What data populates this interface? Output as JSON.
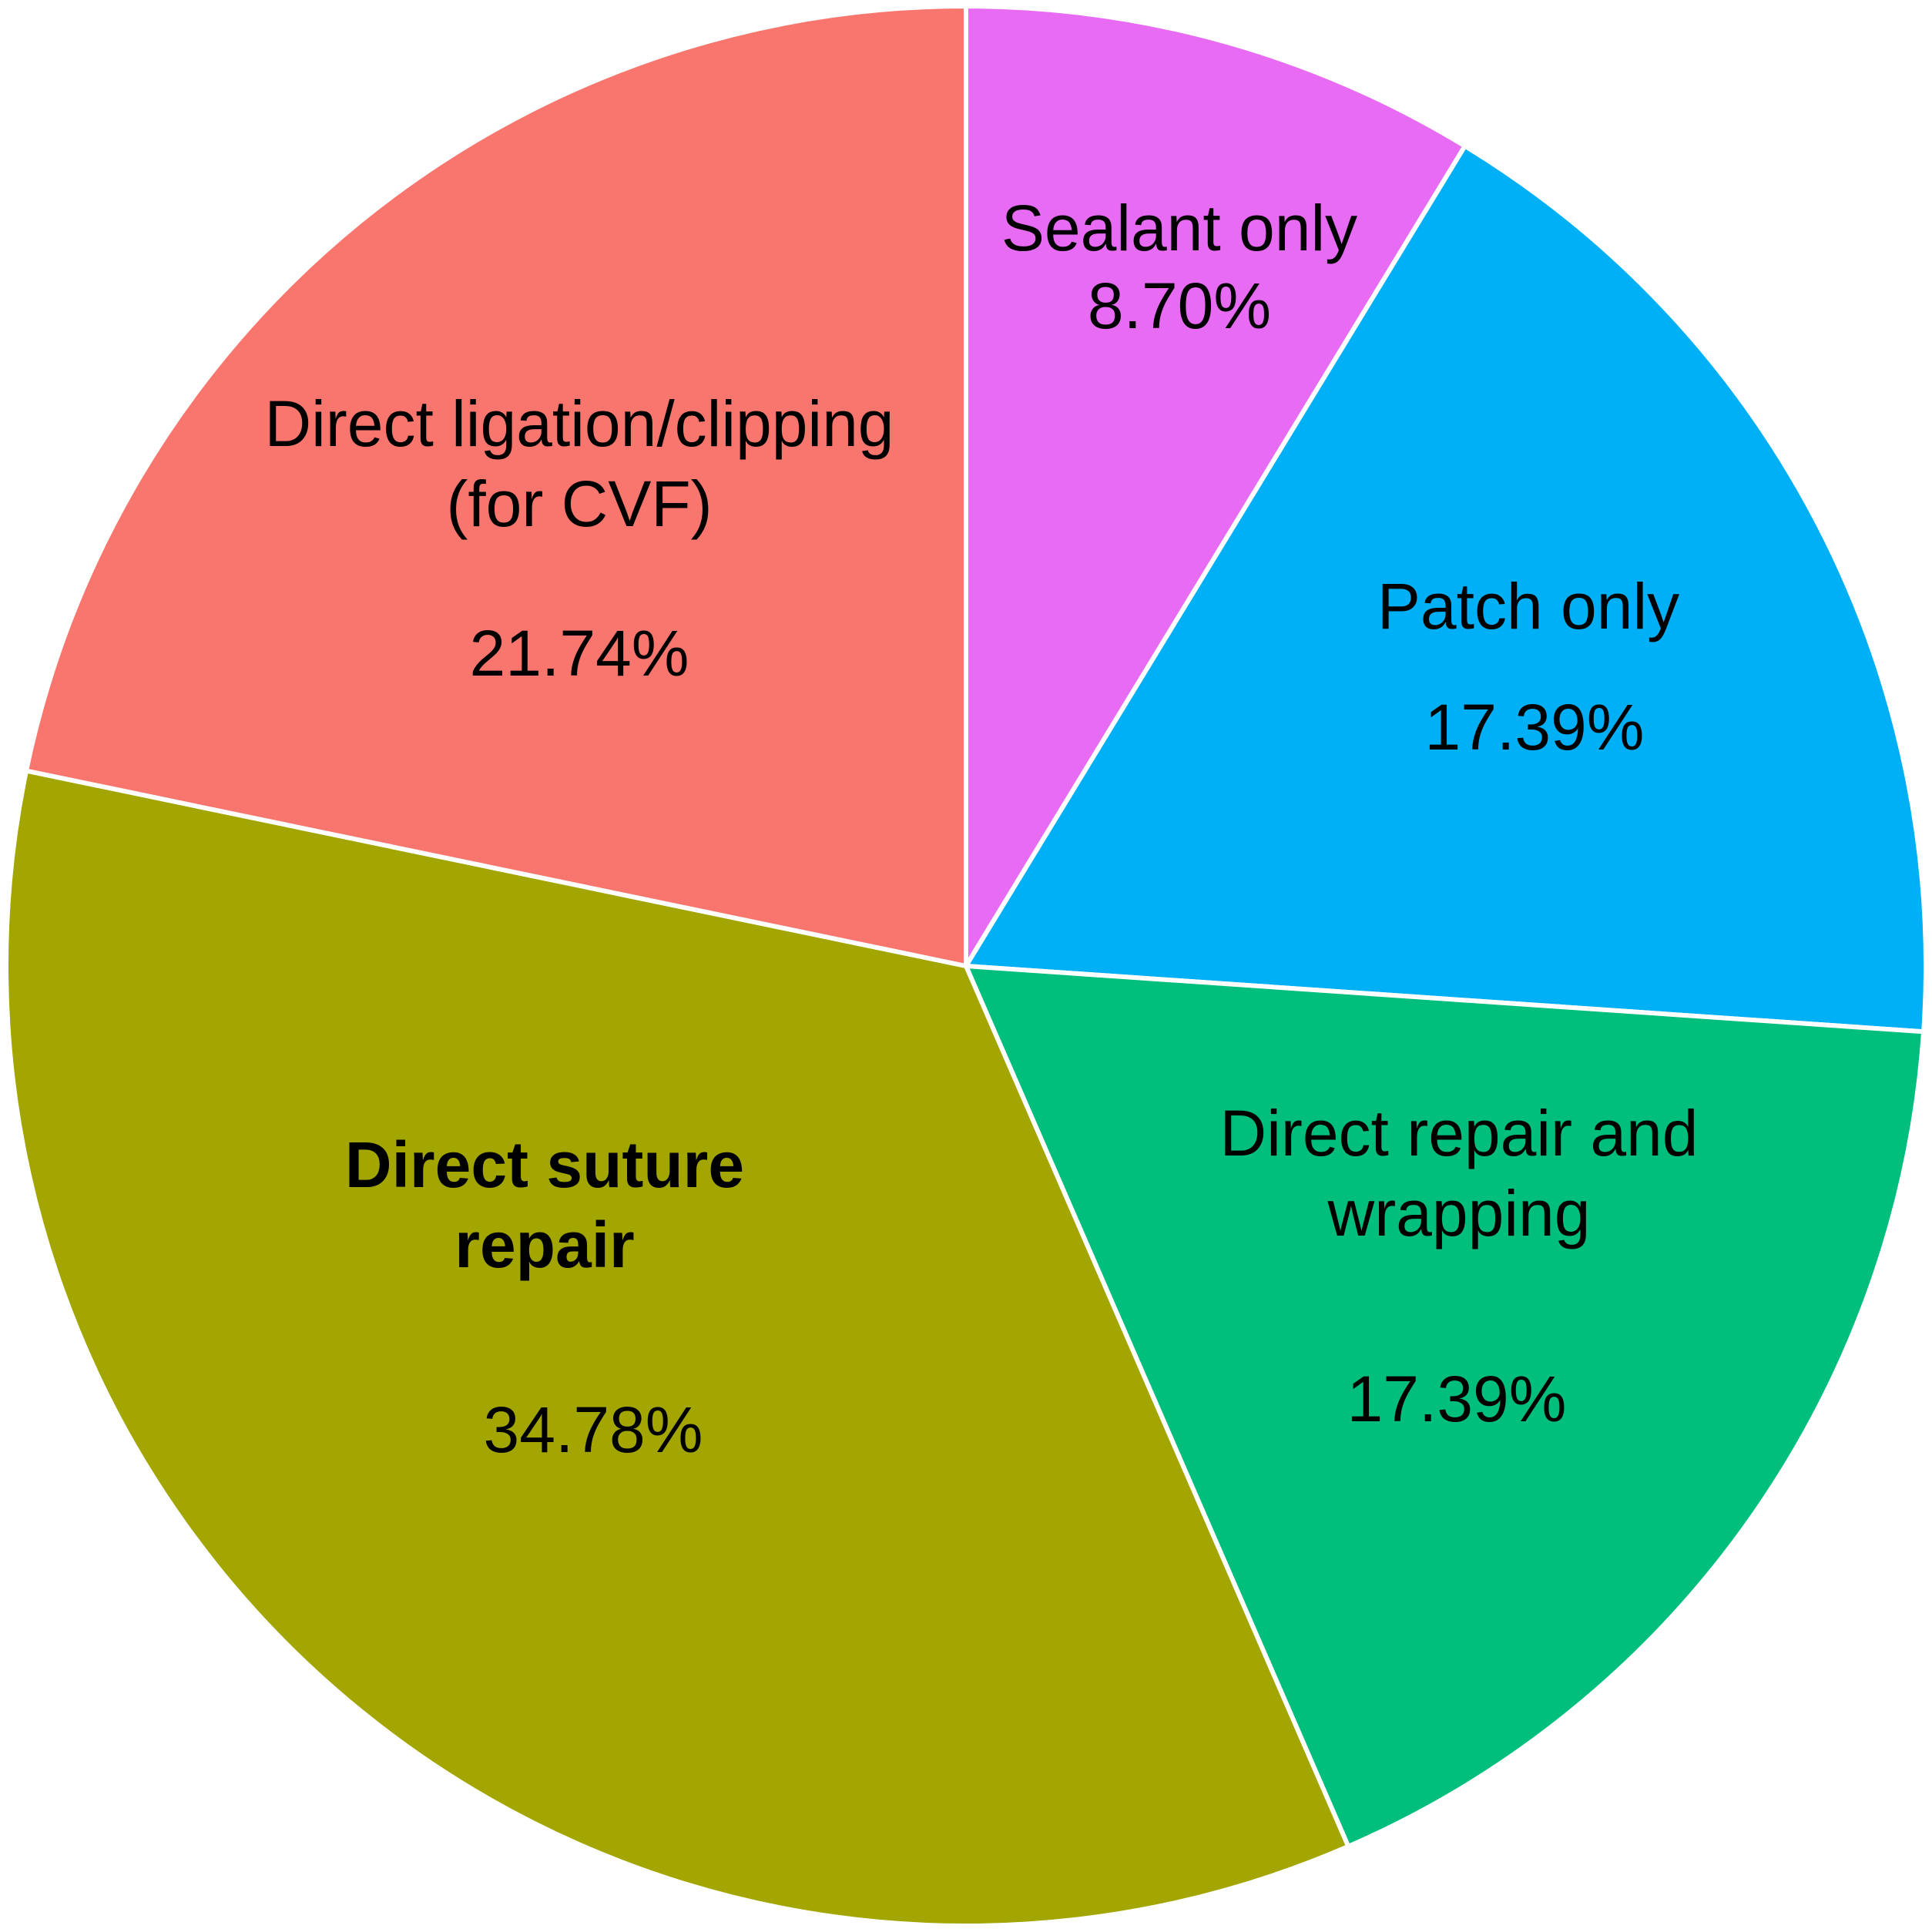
{
  "chart_data": {
    "type": "pie",
    "categories": [
      "Sealant only",
      "Patch only",
      "Direct repair and wrapping",
      "Direct suture repair",
      "Direct ligation/clipping (for CVF)"
    ],
    "values": [
      8.7,
      17.39,
      17.39,
      34.78,
      21.74
    ],
    "value_labels": [
      "8.70%",
      "17.39%",
      "17.39%",
      "34.78%",
      "21.74%"
    ],
    "colors": [
      "#E76BF3",
      "#00B0F6",
      "#00BF7D",
      "#A3A500",
      "#F8766D"
    ],
    "bold_categories": [
      false,
      false,
      false,
      true,
      false
    ]
  }
}
